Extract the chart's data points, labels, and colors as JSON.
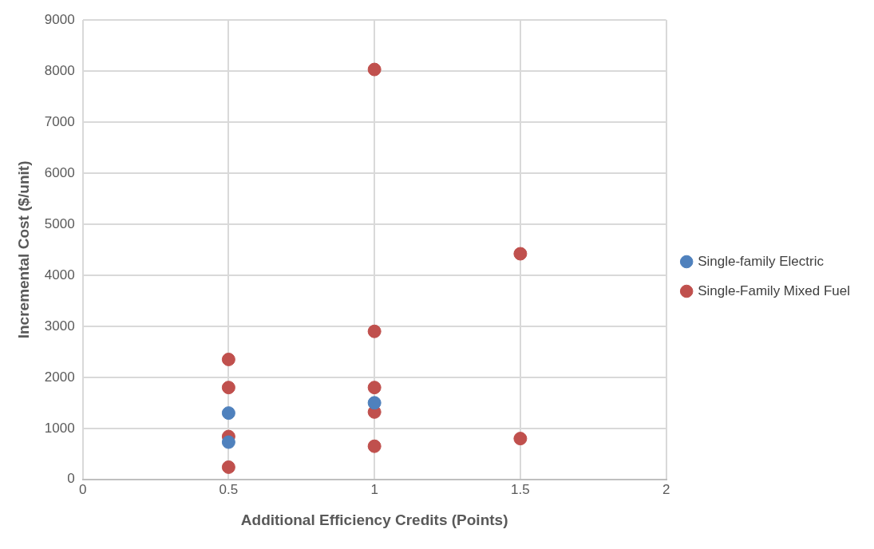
{
  "chart_data": {
    "type": "scatter",
    "xlabel": "Additional Efficiency Credits (Points)",
    "ylabel": "Incremental Cost ($/unit)",
    "series": [
      {
        "name": "Single-family Electric",
        "color": "#4f81bd",
        "x": [
          0.5,
          0.5,
          1
        ],
        "values": [
          1300,
          730,
          1500
        ]
      },
      {
        "name": "Single-Family Mixed Fuel",
        "color": "#c0504d",
        "x": [
          0.5,
          0.5,
          0.5,
          0.5,
          1,
          1,
          1,
          1,
          1,
          1.5,
          1.5
        ],
        "values": [
          2350,
          1800,
          840,
          240,
          8030,
          2900,
          1800,
          1320,
          650,
          4420,
          800
        ]
      }
    ],
    "xlim": [
      0,
      2
    ],
    "xticks": [
      0,
      0.5,
      1,
      1.5,
      2
    ],
    "ylim": [
      0,
      9000
    ],
    "yticks": [
      0,
      1000,
      2000,
      3000,
      4000,
      5000,
      6000,
      7000,
      8000,
      9000
    ],
    "grid": true,
    "legend": "right",
    "marker": "circle"
  }
}
